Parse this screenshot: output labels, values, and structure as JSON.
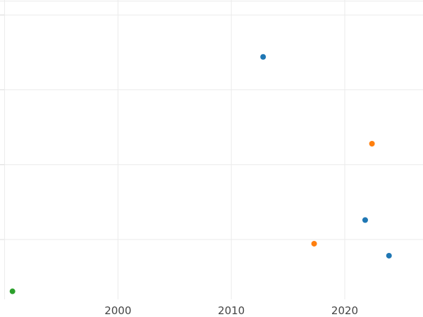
{
  "chart_data": {
    "type": "scatter",
    "title": "",
    "xlabel": "",
    "ylabel": "",
    "xlim": [
      1989.6,
      2026.9
    ],
    "ylim": [
      0,
      1
    ],
    "grid": true,
    "x_ticks": [
      {
        "value": 1990,
        "label": ""
      },
      {
        "value": 2000,
        "label": "2000"
      },
      {
        "value": 2010,
        "label": "2010"
      },
      {
        "value": 2020,
        "label": "2020"
      }
    ],
    "y_gridlines": [
      0.2,
      0.45,
      0.7,
      0.95
    ],
    "series": [
      {
        "color": "#1f77b4",
        "points": [
          {
            "x": 2012.8,
            "y": 0.81
          },
          {
            "x": 2021.8,
            "y": 0.265
          },
          {
            "x": 2023.9,
            "y": 0.146
          }
        ]
      },
      {
        "color": "#ff7f0e",
        "points": [
          {
            "x": 2022.4,
            "y": 0.52
          },
          {
            "x": 2017.3,
            "y": 0.186
          }
        ]
      },
      {
        "color": "#2ca02c",
        "points": [
          {
            "x": 1990.7,
            "y": 0.027
          }
        ]
      }
    ]
  }
}
